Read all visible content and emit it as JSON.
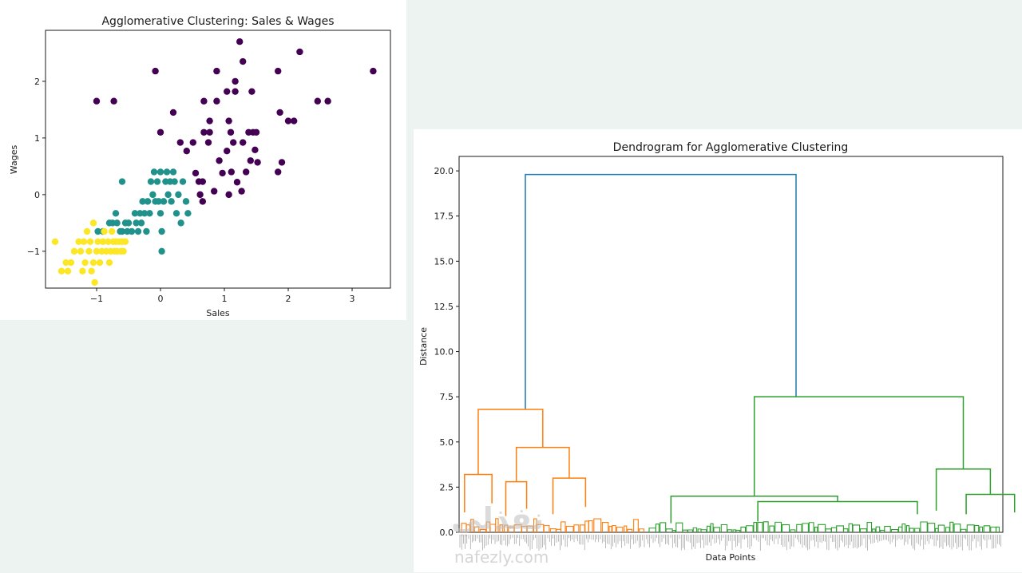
{
  "chart_data": [
    {
      "type": "scatter",
      "title": "Agglomerative Clustering: Sales & Wages",
      "xlabel": "Sales",
      "ylabel": "Wages",
      "xlim": [
        -1.8,
        3.6
      ],
      "ylim": [
        -1.65,
        2.9
      ],
      "xticks": [
        -1,
        0,
        1,
        2,
        3
      ],
      "yticks": [
        -1,
        0,
        1,
        2
      ],
      "grid": false,
      "series": [
        {
          "color": "#440154",
          "points": [
            [
              -1.0,
              1.65
            ],
            [
              -0.73,
              1.65
            ],
            [
              -0.08,
              2.18
            ],
            [
              0.0,
              1.1
            ],
            [
              0.2,
              1.45
            ],
            [
              0.31,
              0.92
            ],
            [
              0.41,
              0.77
            ],
            [
              0.51,
              0.92
            ],
            [
              0.55,
              0.38
            ],
            [
              0.6,
              0.23
            ],
            [
              0.62,
              0.0
            ],
            [
              0.66,
              0.23
            ],
            [
              0.66,
              -0.12
            ],
            [
              0.68,
              1.1
            ],
            [
              0.68,
              1.65
            ],
            [
              0.75,
              0.92
            ],
            [
              0.77,
              1.1
            ],
            [
              0.77,
              1.3
            ],
            [
              0.84,
              0.06
            ],
            [
              0.88,
              1.65
            ],
            [
              0.88,
              2.18
            ],
            [
              0.92,
              0.6
            ],
            [
              0.97,
              0.38
            ],
            [
              1.04,
              1.82
            ],
            [
              1.04,
              0.77
            ],
            [
              1.07,
              0.0
            ],
            [
              1.07,
              1.3
            ],
            [
              1.1,
              1.1
            ],
            [
              1.11,
              0.4
            ],
            [
              1.14,
              0.92
            ],
            [
              1.17,
              2.0
            ],
            [
              1.17,
              1.82
            ],
            [
              1.2,
              0.22
            ],
            [
              1.24,
              2.7
            ],
            [
              1.27,
              0.06
            ],
            [
              1.29,
              0.92
            ],
            [
              1.29,
              2.35
            ],
            [
              1.34,
              0.4
            ],
            [
              1.38,
              1.1
            ],
            [
              1.41,
              0.6
            ],
            [
              1.43,
              1.82
            ],
            [
              1.45,
              1.1
            ],
            [
              1.48,
              0.79
            ],
            [
              1.5,
              1.1
            ],
            [
              1.52,
              0.57
            ],
            [
              1.84,
              0.4
            ],
            [
              1.84,
              2.18
            ],
            [
              1.87,
              1.45
            ],
            [
              1.9,
              0.57
            ],
            [
              2.0,
              1.3
            ],
            [
              2.09,
              1.3
            ],
            [
              2.18,
              2.52
            ],
            [
              2.46,
              1.65
            ],
            [
              2.62,
              1.65
            ],
            [
              3.33,
              2.18
            ]
          ]
        },
        {
          "color": "#21918c",
          "points": [
            [
              -0.98,
              -0.65
            ],
            [
              -0.9,
              -0.65
            ],
            [
              -0.8,
              -0.5
            ],
            [
              -0.75,
              -0.5
            ],
            [
              -0.7,
              -0.33
            ],
            [
              -0.68,
              -0.5
            ],
            [
              -0.63,
              -0.65
            ],
            [
              -0.6,
              0.23
            ],
            [
              -0.6,
              -0.65
            ],
            [
              -0.55,
              -0.5
            ],
            [
              -0.52,
              -0.65
            ],
            [
              -0.5,
              -0.5
            ],
            [
              -0.45,
              -0.65
            ],
            [
              -0.4,
              -0.33
            ],
            [
              -0.38,
              -0.5
            ],
            [
              -0.35,
              -0.65
            ],
            [
              -0.32,
              -0.33
            ],
            [
              -0.3,
              -0.5
            ],
            [
              -0.28,
              -0.12
            ],
            [
              -0.25,
              -0.33
            ],
            [
              -0.22,
              -0.65
            ],
            [
              -0.2,
              -0.12
            ],
            [
              -0.17,
              -0.33
            ],
            [
              -0.15,
              0.23
            ],
            [
              -0.12,
              0.0
            ],
            [
              -0.1,
              0.4
            ],
            [
              -0.08,
              -0.12
            ],
            [
              -0.05,
              0.23
            ],
            [
              -0.03,
              -0.12
            ],
            [
              0.0,
              0.4
            ],
            [
              0.0,
              -0.33
            ],
            [
              0.02,
              -0.65
            ],
            [
              0.02,
              -1.0
            ],
            [
              0.05,
              -0.12
            ],
            [
              0.08,
              0.23
            ],
            [
              0.1,
              0.4
            ],
            [
              0.12,
              0.0
            ],
            [
              0.15,
              0.23
            ],
            [
              0.17,
              -0.12
            ],
            [
              0.2,
              0.4
            ],
            [
              0.22,
              0.23
            ],
            [
              0.25,
              -0.33
            ],
            [
              0.28,
              0.0
            ],
            [
              0.32,
              -0.5
            ],
            [
              0.35,
              0.23
            ],
            [
              0.4,
              -0.12
            ],
            [
              0.43,
              -0.33
            ]
          ]
        },
        {
          "color": "#fde725",
          "points": [
            [
              -1.65,
              -0.83
            ],
            [
              -1.55,
              -1.35
            ],
            [
              -1.48,
              -1.2
            ],
            [
              -1.45,
              -1.35
            ],
            [
              -1.4,
              -1.2
            ],
            [
              -1.35,
              -1.0
            ],
            [
              -1.28,
              -0.83
            ],
            [
              -1.25,
              -1.0
            ],
            [
              -1.22,
              -1.35
            ],
            [
              -1.2,
              -0.83
            ],
            [
              -1.18,
              -1.2
            ],
            [
              -1.15,
              -0.65
            ],
            [
              -1.12,
              -1.0
            ],
            [
              -1.1,
              -0.83
            ],
            [
              -1.08,
              -1.35
            ],
            [
              -1.05,
              -0.5
            ],
            [
              -1.05,
              -1.2
            ],
            [
              -1.03,
              -1.55
            ],
            [
              -1.0,
              -1.0
            ],
            [
              -0.98,
              -0.83
            ],
            [
              -0.95,
              -1.2
            ],
            [
              -0.92,
              -1.0
            ],
            [
              -0.9,
              -0.83
            ],
            [
              -0.88,
              -0.65
            ],
            [
              -0.85,
              -1.0
            ],
            [
              -0.82,
              -0.83
            ],
            [
              -0.8,
              -1.2
            ],
            [
              -0.78,
              -1.0
            ],
            [
              -0.76,
              -0.65
            ],
            [
              -0.74,
              -0.83
            ],
            [
              -0.72,
              -1.0
            ],
            [
              -0.7,
              -0.83
            ],
            [
              -0.68,
              -1.0
            ],
            [
              -0.65,
              -0.83
            ],
            [
              -0.62,
              -1.0
            ],
            [
              -0.6,
              -0.83
            ],
            [
              -0.58,
              -1.0
            ],
            [
              -0.55,
              -0.83
            ]
          ]
        }
      ]
    },
    {
      "type": "dendrogram",
      "title": "Dendrogram for Agglomerative Clustering",
      "xlabel": "Data Points",
      "ylabel": "Distance",
      "ylim": [
        0,
        20.8
      ],
      "yticks": [
        0.0,
        2.5,
        5.0,
        7.5,
        10.0,
        12.5,
        15.0,
        17.5,
        20.0
      ],
      "colors": {
        "root": "#1f77b4",
        "left": "#ff7f0e",
        "right": "#2ca02c"
      },
      "merges": [
        {
          "side": "root",
          "left": 0.262,
          "right": 0.738,
          "height": 19.8,
          "left_height": 6.8,
          "right_height": 7.5
        },
        {
          "side": "left",
          "left": 0.102,
          "right": 0.446,
          "height": 6.8,
          "left_height": 3.2,
          "right_height": 4.7
        },
        {
          "side": "left",
          "left": 0.029,
          "right": 0.175,
          "height": 3.2,
          "left_height": 1.1,
          "right_height": 1.6
        },
        {
          "side": "left",
          "left": 0.305,
          "right": 0.587,
          "height": 4.7,
          "left_height": 2.8,
          "right_height": 3.0
        },
        {
          "side": "left",
          "left": 0.249,
          "right": 0.36,
          "height": 2.8,
          "left_height": 0.9,
          "right_height": 1.3
        },
        {
          "side": "left",
          "left": 0.5,
          "right": 0.674,
          "height": 3.0,
          "left_height": 1.0,
          "right_height": 1.4
        },
        {
          "side": "right",
          "left": 0.302,
          "right": 0.889,
          "height": 7.5,
          "left_height": 2.0,
          "right_height": 3.5
        },
        {
          "side": "right",
          "left": 0.068,
          "right": 0.536,
          "height": 2.0,
          "left_height": 0.5,
          "right_height": 1.7
        },
        {
          "side": "right",
          "left": 0.813,
          "right": 0.965,
          "height": 3.5,
          "left_height": 1.2,
          "right_height": 2.1
        },
        {
          "side": "right",
          "left": 0.312,
          "right": 0.76,
          "height": 1.7,
          "left_height": 0.6,
          "right_height": 1.0
        },
        {
          "side": "right",
          "left": 0.897,
          "right": 1.033,
          "height": 2.1,
          "left_height": 1.0,
          "right_height": 1.1
        }
      ]
    }
  ],
  "watermark": {
    "arabic": "نفذلي",
    "latin": "nafezly.com"
  }
}
